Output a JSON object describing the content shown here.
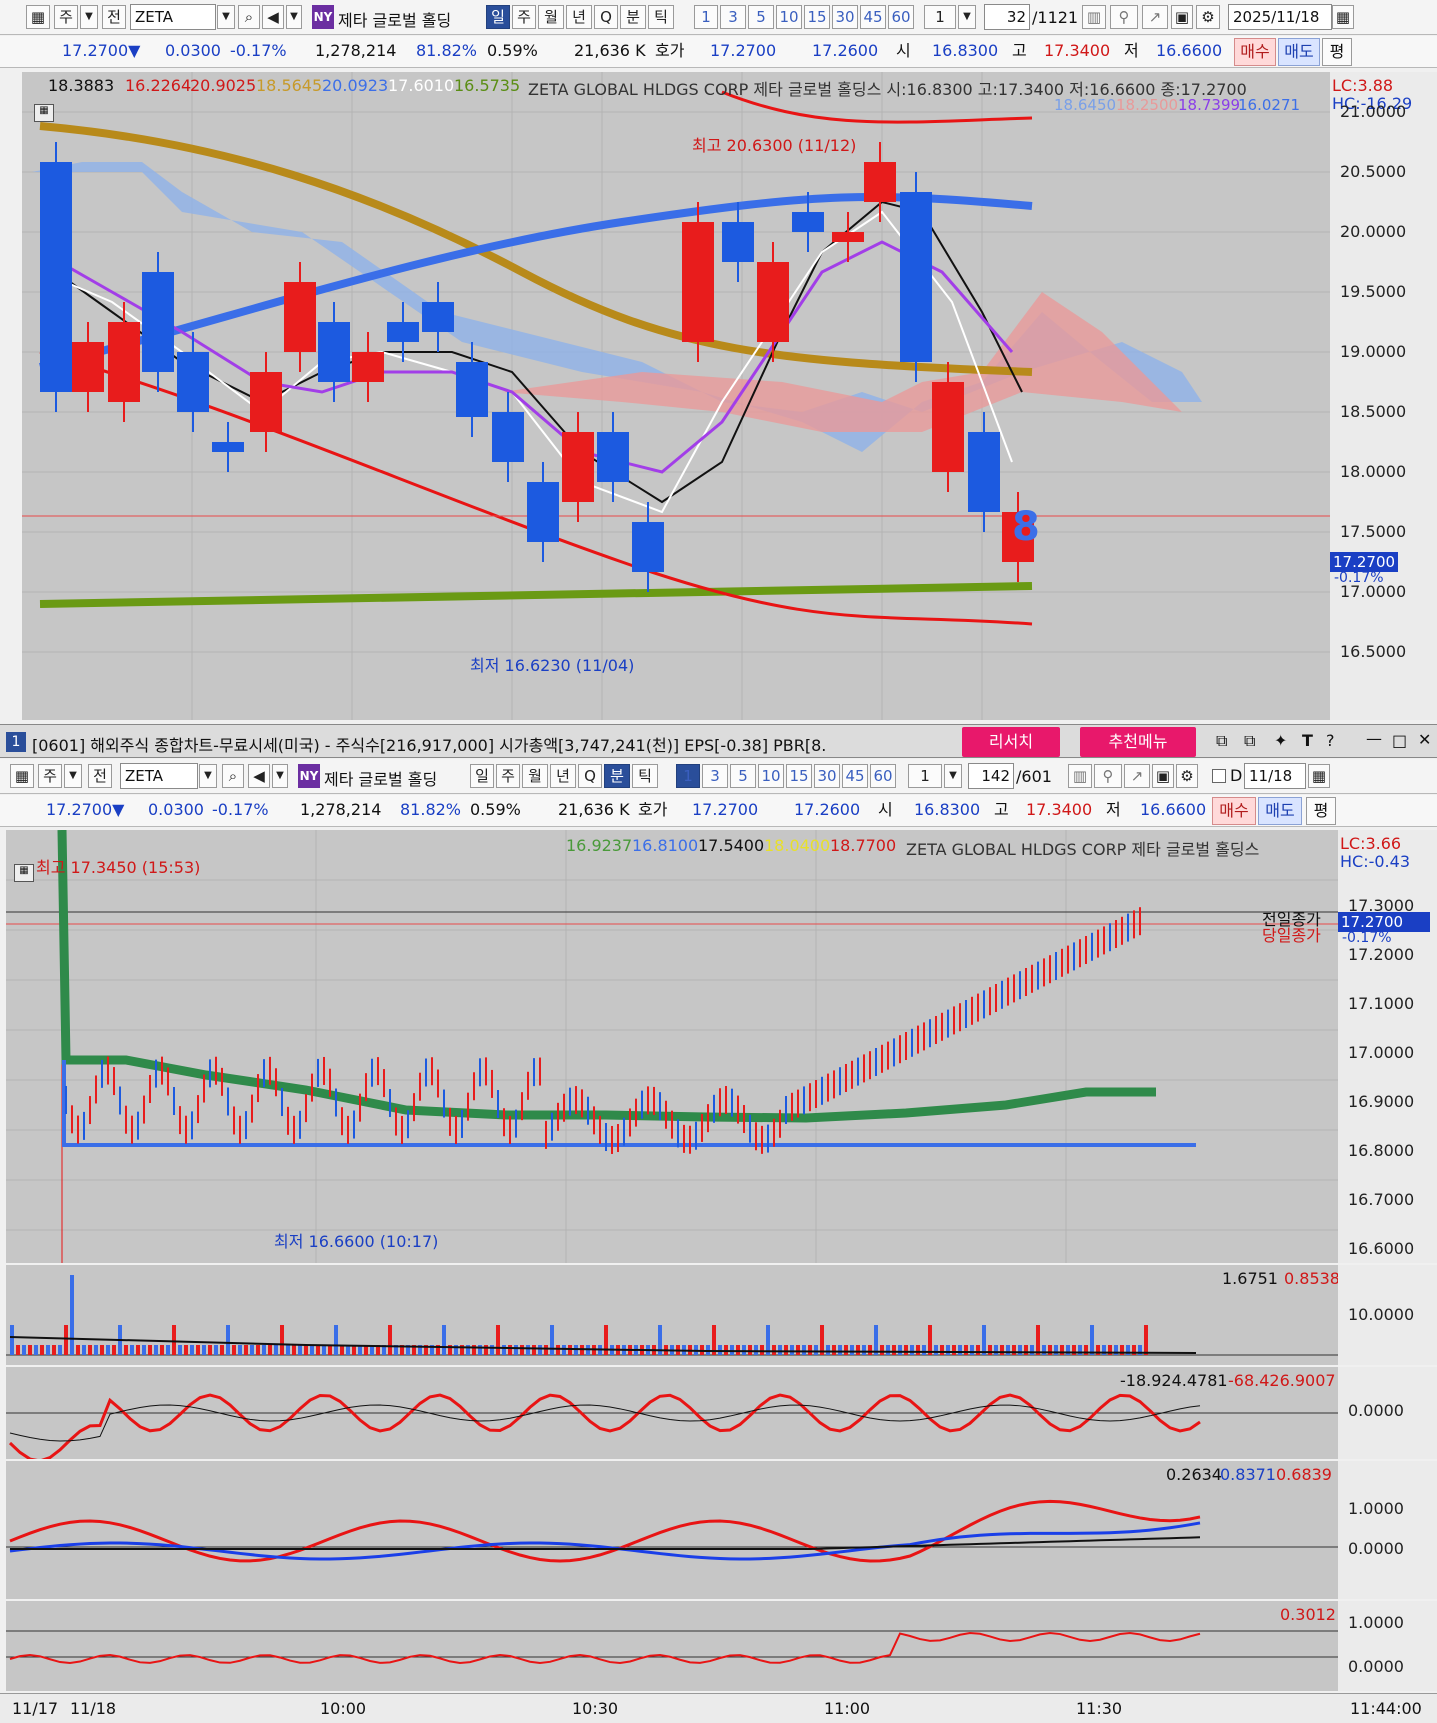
{
  "top": {
    "toolbar": {
      "type1": "주",
      "type2": "전",
      "symbol": "ZETA",
      "ny": "NY",
      "name": "제타 글로벌 홀딩",
      "periods": [
        "일",
        "주",
        "월",
        "년",
        "Q",
        "분",
        "틱"
      ],
      "active_period": "일",
      "intervals": [
        "1",
        "3",
        "5",
        "10",
        "15",
        "30",
        "45",
        "60"
      ],
      "count_sel": "1",
      "page": "32",
      "page_total": "/1121",
      "date": "2025/11/18"
    },
    "quote": {
      "price": "17.2700▼",
      "change": "0.0300",
      "pct": "-0.17%",
      "volume": "1,278,214",
      "ratio1": "81.82%",
      "ratio2": "0.59%",
      "amount": "21,636 K",
      "hoga_label": "호가",
      "ask": "17.2700",
      "bid": "17.2600",
      "open_label": "시",
      "open": "16.8300",
      "high_label": "고",
      "high": "17.3400",
      "low_label": "저",
      "low": "16.6600",
      "buy": "매수",
      "sell": "매도",
      "eval": "평"
    },
    "legend": {
      "v1": "18.3883",
      "v2": "16.2264",
      "v3": "20.9025",
      "v4": "18.5645",
      "v5": "20.0923",
      "v6": "17.6010",
      "v7": "16.5735",
      "title": "ZETA GLOBAL HLDGS CORP 제타 글로벌 홀딩스 시:16.8300 고:17.3400 저:16.6600 종:17.2700",
      "lc": "LC:3.88",
      "hc": "HC:-16.29",
      "w1": "18.6450",
      "w2": "18.2500",
      "w3": "18.7399",
      "w4": "16.0271"
    },
    "annotations": {
      "high": "최고 20.6300 (11/12)",
      "low": "최저 16.6230 (11/04)",
      "count_badge": "8"
    },
    "price_tag": {
      "value": "17.2700",
      "pct": "-0.17%"
    },
    "axis": [
      "21.0000",
      "20.5000",
      "20.0000",
      "19.5000",
      "19.0000",
      "18.5000",
      "18.0000",
      "17.5000",
      "17.0000",
      "16.5000"
    ]
  },
  "window2": {
    "title": "[0601] 해외주식 종합차트-무료시세(미국) - 주식수[216,917,000] 시가총액[3,747,241(천)] EPS[-0.38] PBR[8.",
    "index": "1",
    "research": "리서치",
    "recommend": "추천메뉴"
  },
  "bottom": {
    "toolbar": {
      "type1": "주",
      "type2": "전",
      "symbol": "ZETA",
      "ny": "NY",
      "name": "제타 글로벌 홀딩",
      "periods": [
        "일",
        "주",
        "월",
        "년",
        "Q",
        "분",
        "틱"
      ],
      "active_period": "분",
      "intervals": [
        "1",
        "3",
        "5",
        "10",
        "15",
        "30",
        "45",
        "60"
      ],
      "active_interval": "1",
      "count_sel": "1",
      "page": "142",
      "page_total": "/601",
      "d_label": "D",
      "date": "11/18"
    },
    "quote": {
      "price": "17.2700▼",
      "change": "0.0300",
      "pct": "-0.17%",
      "volume": "1,278,214",
      "ratio1": "81.82%",
      "ratio2": "0.59%",
      "amount": "21,636 K",
      "hoga_label": "호가",
      "ask": "17.2700",
      "bid": "17.2600",
      "open_label": "시",
      "open": "16.8300",
      "high_label": "고",
      "high": "17.3400",
      "low_label": "저",
      "low": "16.6600",
      "buy": "매수",
      "sell": "매도",
      "eval": "평"
    },
    "legend": {
      "v1": "16.9237",
      "v2": "16.8100",
      "v3": "17.5400",
      "v4": "18.0400",
      "v5": "18.7700",
      "title": "ZETA GLOBAL HLDGS CORP 제타 글로벌 홀딩스",
      "lc": "LC:3.66",
      "hc": "HC:-0.43"
    },
    "annotations": {
      "high": "최고 17.3450 (15:53)",
      "low": "최저 16.6600 (10:17)",
      "prev_close": "전일종가",
      "today_close": "당일종가"
    },
    "price_tag": {
      "value": "17.2700",
      "pct": "-0.17%"
    },
    "axis": [
      "17.3000",
      "17.2000",
      "17.1000",
      "17.0000",
      "16.9000",
      "16.8000",
      "16.7000",
      "16.6000"
    ],
    "volume_panel": {
      "v1": "1.6751",
      "v2": "0.8538",
      "axis": "10.0000"
    },
    "panel2": {
      "v1": "-18.924.4781",
      "v2": "-68.426.9007",
      "axis": "0.0000"
    },
    "panel3": {
      "v1": "0.2634",
      "v2": "0.8371",
      "v3": "0.6839",
      "axis1": "1.0000",
      "axis2": "0.0000"
    },
    "panel4": {
      "v1": "0.3012",
      "axis1": "1.0000",
      "axis2": "0.0000"
    },
    "time_axis": [
      "11/17",
      "11/18",
      "10:00",
      "10:30",
      "11:00",
      "11:30",
      "11:44:00"
    ]
  }
}
